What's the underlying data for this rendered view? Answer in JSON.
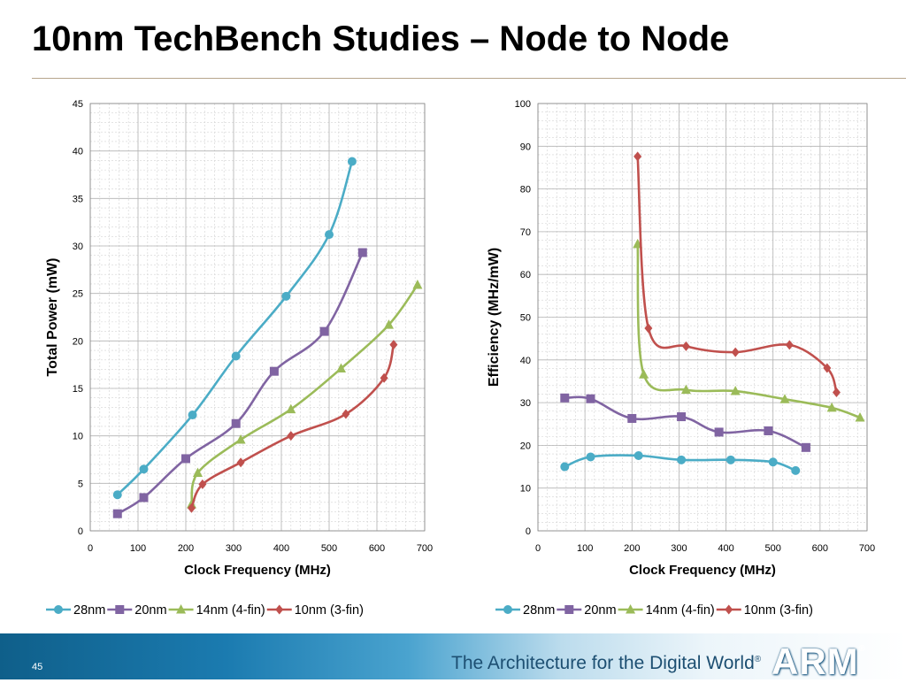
{
  "slide": {
    "title": "10nm TechBench Studies – Node to Node",
    "page_number": "45",
    "tagline": "The Architecture for the Digital World",
    "tagline_mark": "®",
    "logo_text": "ARM",
    "logo_mark": "®"
  },
  "colors": {
    "28nm": "#4bacc6",
    "20nm": "#8064a2",
    "14nm": "#9bbb59",
    "10nm": "#c0504d"
  },
  "chart_data": [
    {
      "type": "line",
      "xlabel": "Clock Frequency (MHz)",
      "ylabel": "Total Power (mW)",
      "xlim": [
        0,
        700
      ],
      "ylim": [
        0,
        45
      ],
      "xticks": [
        0,
        100,
        200,
        300,
        400,
        500,
        600,
        700
      ],
      "yticks": [
        0,
        5,
        10,
        15,
        20,
        25,
        30,
        35,
        40,
        45
      ],
      "grid": true,
      "legend": "bottom",
      "series": [
        {
          "name": "28nm",
          "marker": "circle",
          "x": [
            57,
            112,
            214,
            305,
            410,
            500,
            548
          ],
          "y": [
            3.8,
            6.5,
            12.2,
            18.4,
            24.7,
            31.2,
            38.9
          ]
        },
        {
          "name": "20nm",
          "marker": "square",
          "x": [
            57,
            112,
            200,
            305,
            385,
            490,
            570
          ],
          "y": [
            1.8,
            3.5,
            7.6,
            11.3,
            16.8,
            21.0,
            29.3
          ]
        },
        {
          "name": "14nm (4-fin)",
          "marker": "triangle",
          "x": [
            212,
            225,
            315,
            420,
            525,
            625,
            685
          ],
          "y": [
            2.8,
            6.1,
            9.6,
            12.8,
            17.1,
            21.7,
            25.9
          ]
        },
        {
          "name": "10nm (3-fin)",
          "marker": "diamond",
          "x": [
            212,
            235,
            315,
            420,
            535,
            615,
            635
          ],
          "y": [
            2.4,
            4.9,
            7.2,
            10.0,
            12.3,
            16.1,
            19.6
          ]
        }
      ]
    },
    {
      "type": "line",
      "xlabel": "Clock Frequency (MHz)",
      "ylabel": "Efficiency (MHz/mW)",
      "xlim": [
        0,
        700
      ],
      "ylim": [
        0,
        100
      ],
      "xticks": [
        0,
        100,
        200,
        300,
        400,
        500,
        600,
        700
      ],
      "yticks": [
        0,
        10,
        20,
        30,
        40,
        50,
        60,
        70,
        80,
        90,
        100
      ],
      "grid": true,
      "legend": "bottom",
      "series": [
        {
          "name": "28nm",
          "marker": "circle",
          "x": [
            57,
            112,
            214,
            305,
            410,
            500,
            548
          ],
          "y": [
            15.0,
            17.3,
            17.6,
            16.6,
            16.6,
            16.1,
            14.1
          ]
        },
        {
          "name": "20nm",
          "marker": "square",
          "x": [
            57,
            112,
            200,
            305,
            385,
            490,
            570
          ],
          "y": [
            31.1,
            30.9,
            26.3,
            26.7,
            23.1,
            23.4,
            19.5
          ]
        },
        {
          "name": "14nm (4-fin)",
          "marker": "triangle",
          "x": [
            212,
            225,
            315,
            420,
            525,
            625,
            685
          ],
          "y": [
            67.1,
            36.6,
            33.0,
            32.7,
            30.8,
            28.8,
            26.5
          ]
        },
        {
          "name": "10nm (3-fin)",
          "marker": "diamond",
          "x": [
            212,
            235,
            315,
            420,
            535,
            615,
            635
          ],
          "y": [
            87.6,
            47.4,
            43.2,
            41.8,
            43.5,
            38.1,
            32.4
          ]
        }
      ]
    }
  ]
}
